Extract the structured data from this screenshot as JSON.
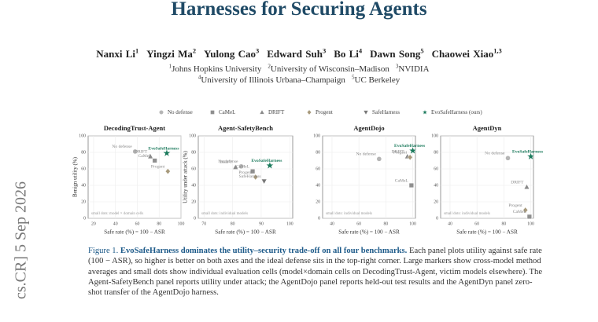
{
  "header": {
    "title": "Harnesses for Securing Agents",
    "authors": [
      {
        "name": "Nanxi Li",
        "sup": "1"
      },
      {
        "name": "Yingzi Ma",
        "sup": "2"
      },
      {
        "name": "Yulong Cao",
        "sup": "3"
      },
      {
        "name": "Edward Suh",
        "sup": "3"
      },
      {
        "name": "Bo Li",
        "sup": "4"
      },
      {
        "name": "Dawn Song",
        "sup": "5"
      },
      {
        "name": "Chaowei Xiao",
        "sup": "1,3"
      }
    ],
    "affiliations": [
      [
        {
          "sup": "1",
          "name": "Johns Hopkins University"
        },
        {
          "sup": "2",
          "name": "University of Wisconsin–Madison"
        },
        {
          "sup": "3",
          "name": "NVIDIA"
        }
      ],
      [
        {
          "sup": "4",
          "name": "University of Illinois Urbana–Champaign"
        },
        {
          "sup": "5",
          "name": "UC Berkeley"
        }
      ]
    ]
  },
  "side_stamp": "cs.CR]  5 Sep 2026",
  "figure": {
    "legend": [
      {
        "name": "No defense",
        "color": "#b5b5b5",
        "marker": "circle"
      },
      {
        "name": "CaMeL",
        "color": "#8f8f8f",
        "marker": "square"
      },
      {
        "name": "DRIFT",
        "color": "#8a8a8a",
        "marker": "triangle"
      },
      {
        "name": "Progent",
        "color": "#a89a7c",
        "marker": "diamond"
      },
      {
        "name": "SafeHarness",
        "color": "#777777",
        "marker": "triangle-down"
      },
      {
        "name": "EvoSafeHarness (ours)",
        "color": "#1b7a5c",
        "marker": "star"
      }
    ],
    "caption": {
      "label": "Figure 1.",
      "lead": "EvoSafeHarness dominates the utility–security trade-off on all four benchmarks.",
      "body": "Each panel plots utility against safe rate (100 − ASR), so higher is better on both axes and the ideal defense sits in the top-right corner. Large markers show cross-model method averages and small dots show individual evaluation cells (model×domain cells on DecodingTrust-Agent, victim models elsewhere). The Agent-SafetyBench panel reports utility under attack; the AgentDojo panel reports held-out test results and the AgentDyn panel zero-shot transfer of the AgentDojo harness."
    }
  },
  "chart_data": [
    {
      "type": "scatter",
      "title": "DecodingTrust-Agent",
      "xlabel": "Safe rate (%) = 100 − ASR",
      "ylabel": "Benign utility (%)",
      "note": "small dots: model × domain cells",
      "grid": true,
      "xlim": [
        15,
        100
      ],
      "xticks": [
        20,
        40,
        60,
        80,
        100
      ],
      "ylim": [
        0,
        100
      ],
      "yticks": [
        0,
        20,
        40,
        60,
        80,
        100
      ],
      "series": [
        {
          "name": "No defense",
          "color": "#b5b5b5",
          "marker": "circle",
          "x": [
            58
          ],
          "values": [
            81
          ]
        },
        {
          "name": "DRIFT",
          "color": "#8a8a8a",
          "marker": "triangle",
          "x": [
            72
          ],
          "values": [
            75
          ]
        },
        {
          "name": "CaMeL",
          "color": "#8f8f8f",
          "marker": "square",
          "x": [
            76
          ],
          "values": [
            70
          ]
        },
        {
          "name": "EvoSafeHarness",
          "color": "#1b7a5c",
          "marker": "star",
          "x": [
            87
          ],
          "values": [
            79
          ]
        },
        {
          "name": "Progent",
          "color": "#a89a7c",
          "marker": "diamond",
          "x": [
            88
          ],
          "values": [
            57
          ]
        }
      ]
    },
    {
      "type": "scatter",
      "title": "Agent-SafetyBench",
      "xlabel": "Safe rate (%) = 100 − ASR",
      "ylabel": "Utility under attack (%)",
      "note": "small dots: individual models",
      "grid": true,
      "xlim": [
        68,
        101
      ],
      "xticks": [
        70,
        80,
        90,
        100
      ],
      "ylim": [
        0,
        100
      ],
      "yticks": [
        0,
        20,
        40,
        60,
        80,
        100
      ],
      "series": [
        {
          "name": "No defense",
          "color": "#b5b5b5",
          "marker": "circle",
          "x": [
            83
          ],
          "values": [
            63
          ]
        },
        {
          "name": "DRIFT",
          "color": "#8a8a8a",
          "marker": "triangle",
          "x": [
            81
          ],
          "values": [
            62
          ]
        },
        {
          "name": "CaMeL",
          "color": "#8f8f8f",
          "marker": "square",
          "x": [
            87
          ],
          "values": [
            57
          ]
        },
        {
          "name": "EvoSafeHarness",
          "color": "#1b7a5c",
          "marker": "star",
          "x": [
            93
          ],
          "values": [
            64
          ]
        },
        {
          "name": "Progent",
          "color": "#a89a7c",
          "marker": "diamond",
          "x": [
            88
          ],
          "values": [
            50
          ]
        },
        {
          "name": "SafeHarness",
          "color": "#777777",
          "marker": "triangle-down",
          "x": [
            91
          ],
          "values": [
            45
          ]
        }
      ]
    },
    {
      "type": "scatter",
      "title": "AgentDojo",
      "xlabel": "Safe rate (%) = 100 − ASR",
      "note": "small dots: individual models",
      "grid": true,
      "xlim": [
        33,
        102
      ],
      "xticks": [
        40,
        60,
        80,
        100
      ],
      "ylim": [
        0,
        100
      ],
      "yticks": [
        0,
        20,
        40,
        60,
        80,
        100
      ],
      "series": [
        {
          "name": "No defense",
          "color": "#b5b5b5",
          "marker": "circle",
          "x": [
            75
          ],
          "values": [
            72
          ]
        },
        {
          "name": "DRIFT",
          "color": "#8a8a8a",
          "marker": "triangle",
          "x": [
            96
          ],
          "values": [
            75
          ]
        },
        {
          "name": "Progent",
          "color": "#a89a7c",
          "marker": "diamond",
          "x": [
            98
          ],
          "values": [
            74
          ]
        },
        {
          "name": "EvoSafeHarness",
          "color": "#1b7a5c",
          "marker": "star",
          "x": [
            100
          ],
          "values": [
            82
          ]
        },
        {
          "name": "CaMeL",
          "color": "#8f8f8f",
          "marker": "square",
          "x": [
            99
          ],
          "values": [
            40
          ]
        }
      ]
    },
    {
      "type": "scatter",
      "title": "AgentDyn",
      "xlabel": "Safe rate (%) = 100 − ASR",
      "note": "small dots: individual models",
      "grid": true,
      "xlim": [
        33,
        102
      ],
      "xticks": [
        40,
        60,
        80,
        100
      ],
      "ylim": [
        0,
        100
      ],
      "yticks": [
        0,
        20,
        40,
        60,
        80,
        100
      ],
      "series": [
        {
          "name": "No defense",
          "color": "#b5b5b5",
          "marker": "circle",
          "x": [
            83
          ],
          "values": [
            73
          ]
        },
        {
          "name": "EvoSafeHarness",
          "color": "#1b7a5c",
          "marker": "star",
          "x": [
            100
          ],
          "values": [
            75
          ]
        },
        {
          "name": "DRIFT",
          "color": "#8a8a8a",
          "marker": "triangle",
          "x": [
            97
          ],
          "values": [
            38
          ]
        },
        {
          "name": "Progent",
          "color": "#a89a7c",
          "marker": "diamond",
          "x": [
            96
          ],
          "values": [
            10
          ]
        },
        {
          "name": "CaMeL",
          "color": "#8f8f8f",
          "marker": "square",
          "x": [
            99
          ],
          "values": [
            2
          ]
        }
      ]
    }
  ]
}
